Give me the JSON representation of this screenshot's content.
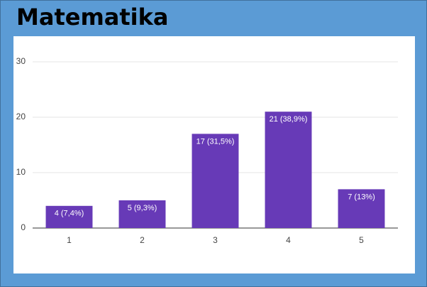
{
  "title": "Matematika",
  "chart_data": {
    "type": "bar",
    "categories": [
      "1",
      "2",
      "3",
      "4",
      "5"
    ],
    "values": [
      4,
      5,
      17,
      21,
      7
    ],
    "value_labels": [
      "4 (7,4%)",
      "5 (9,3%)",
      "17 (31,5%)",
      "21 (38,9%)",
      "7 (13%)"
    ],
    "color": "#673ab7",
    "ylim": [
      0,
      30
    ],
    "yticks": [
      0,
      10,
      20,
      30
    ],
    "grid": true
  }
}
